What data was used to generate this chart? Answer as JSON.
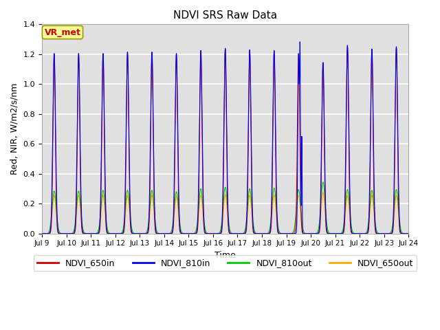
{
  "title": "NDVI SRS Raw Data",
  "xlabel": "Time",
  "ylabel": "Red, NIR, W/m2/s/nm",
  "ylim": [
    0,
    1.4
  ],
  "xlim_days": [
    9,
    24
  ],
  "x_tick_labels": [
    "Jul 9",
    "Jul 10",
    "Jul 11",
    "Jul 12",
    "Jul 13",
    "Jul 14",
    "Jul 15",
    "Jul 16",
    "Jul 17",
    "Jul 18",
    "Jul 19",
    "Jul 20",
    "Jul 21",
    "Jul 22",
    "Jul 23",
    "Jul 24"
  ],
  "color_650in": "#cc0000",
  "color_810in": "#0000ee",
  "color_810out": "#00cc00",
  "color_650out": "#ffaa00",
  "legend_labels": [
    "NDVI_650in",
    "NDVI_810in",
    "NDVI_810out",
    "NDVI_650out"
  ],
  "annotation_text": "VR_met",
  "annotation_color": "#cc0000",
  "annotation_bg": "#ffff99",
  "bg_color": "#e0e0e0",
  "peak_650in": 1.2,
  "peak_810in": 1.205,
  "peak_810out": 0.295,
  "peak_650out": 0.255
}
